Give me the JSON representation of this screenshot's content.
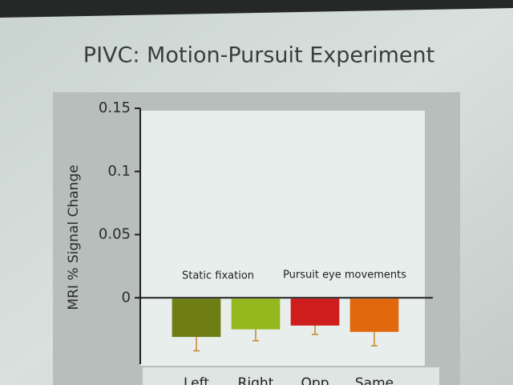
{
  "chart_data": {
    "type": "bar",
    "title": "PIVC: Motion-Pursuit Experiment",
    "y_label": "MRI % Signal Change",
    "annotations": [
      "Static fixation",
      "Pursuit eye movements"
    ],
    "categories": [
      "Left",
      "Right",
      "Opp",
      "Same"
    ],
    "values": [
      -0.031,
      -0.025,
      -0.022,
      -0.027
    ],
    "errors": [
      0.011,
      0.009,
      0.007,
      0.011
    ],
    "colors": [
      "#6e7d14",
      "#94b81e",
      "#cf1c1c",
      "#e2680e"
    ],
    "error_color": "#c8862a",
    "ylim": [
      -0.05,
      0.15
    ],
    "yticks": [
      0,
      0.05,
      0.1,
      0.15
    ]
  }
}
